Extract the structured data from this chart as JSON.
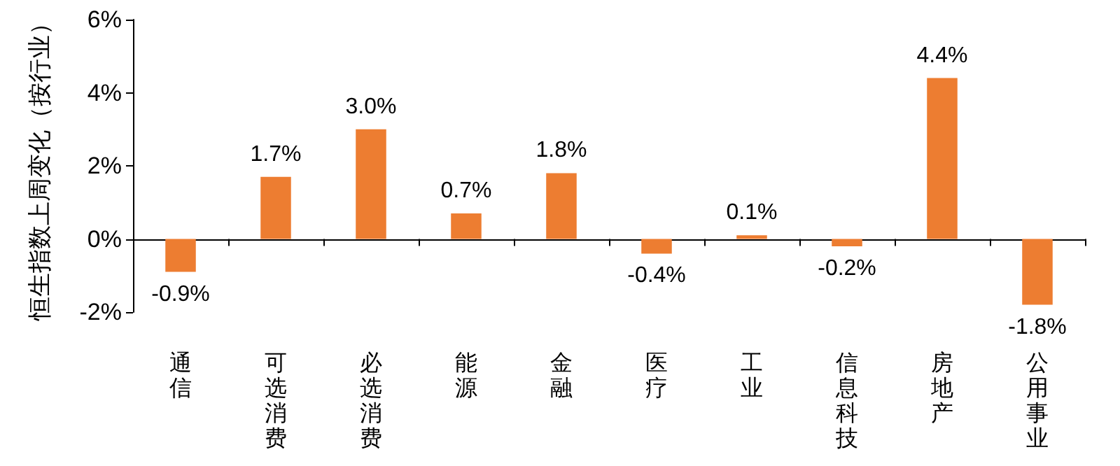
{
  "chart_data": {
    "type": "bar",
    "ylabel": "恒生指数上周变化（按行业）",
    "categories": [
      "通信",
      "可选消费",
      "必选消费",
      "能源",
      "金融",
      "医疗",
      "工业",
      "信息科技",
      "房地产",
      "公用事业"
    ],
    "values": [
      -0.9,
      1.7,
      3.0,
      0.7,
      1.8,
      -0.4,
      0.1,
      -0.2,
      4.4,
      -1.8
    ],
    "value_labels": [
      "-0.9%",
      "1.7%",
      "3.0%",
      "0.7%",
      "1.8%",
      "-0.4%",
      "0.1%",
      "-0.2%",
      "4.4%",
      "-1.8%"
    ],
    "color": "#ed7d31",
    "ylim": [
      -2,
      6
    ],
    "yticks": [
      {
        "value": -2,
        "label": "-2%"
      },
      {
        "value": 0,
        "label": "0%"
      },
      {
        "value": 2,
        "label": "2%"
      },
      {
        "value": 4,
        "label": "4%"
      },
      {
        "value": 6,
        "label": "6%"
      }
    ],
    "orientation": "vertical"
  }
}
